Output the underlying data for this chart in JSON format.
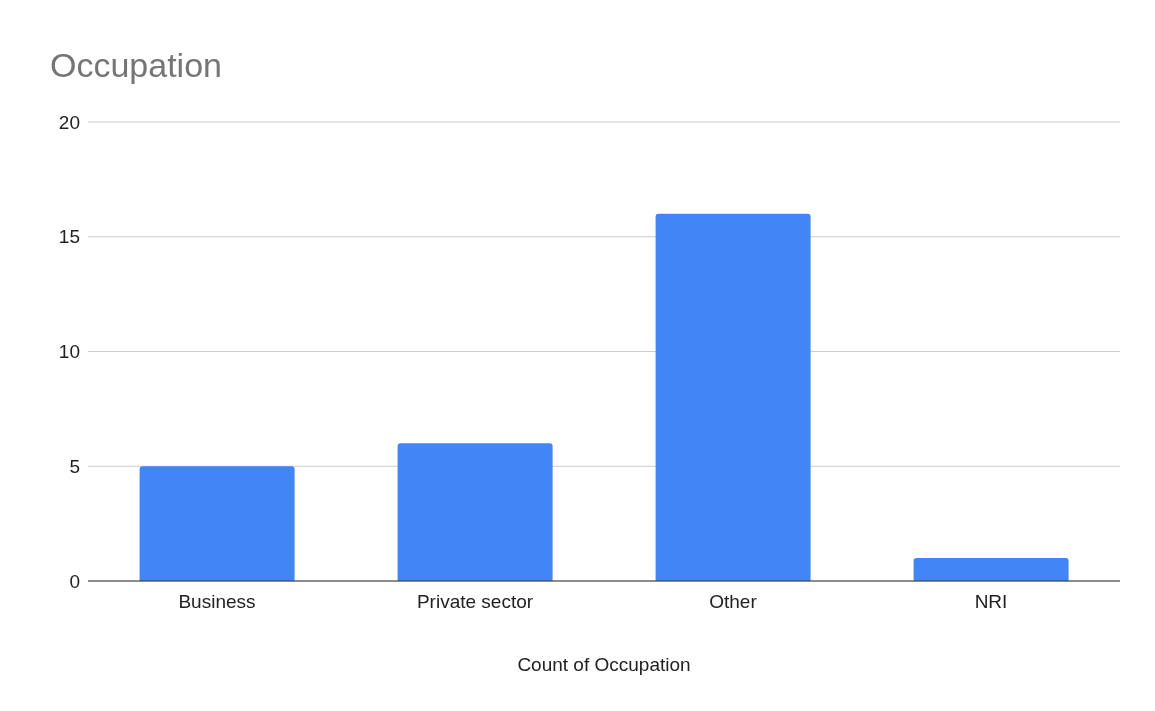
{
  "chart_data": {
    "type": "bar",
    "title": "Occupation",
    "xlabel": "Count of Occupation",
    "categories": [
      "Business",
      "Private sector",
      "Other",
      "NRI"
    ],
    "values": [
      5,
      6,
      16,
      1
    ],
    "color": "#4285f4",
    "ylim": [
      0,
      20
    ],
    "yticks": [
      0,
      5,
      10,
      15,
      20
    ],
    "grid": "y"
  }
}
